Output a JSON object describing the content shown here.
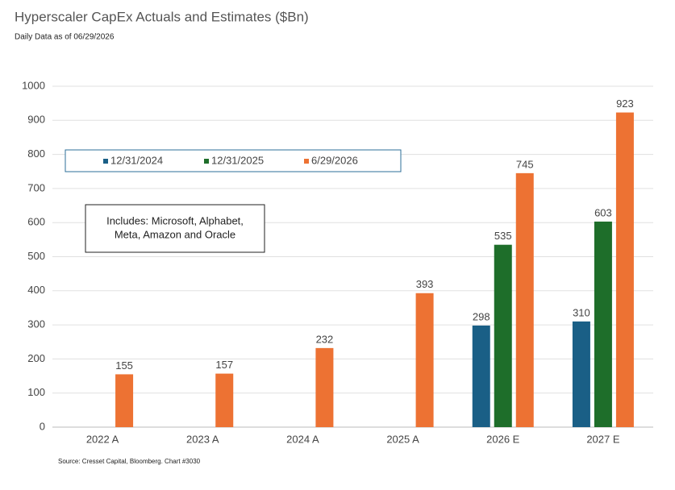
{
  "chart_data": {
    "type": "bar",
    "title": "Hyperscaler CapEx Actuals and Estimates ($Bn)",
    "subtitle": "Daily Data as of 06/29/2026",
    "source": "Source: Cresset Capital, Bloomberg. Chart #3030",
    "annotation": [
      "Includes: Microsoft, Alphabet,",
      "Meta, Amazon and Oracle"
    ],
    "categories": [
      "2022 A",
      "2023 A",
      "2024 A",
      "2025 A",
      "2026 E",
      "2027 E"
    ],
    "series": [
      {
        "name": "12/31/2024",
        "color": "#1a5f86",
        "values": [
          null,
          null,
          null,
          null,
          298,
          310
        ]
      },
      {
        "name": "12/31/2025",
        "color": "#1e6e2a",
        "values": [
          null,
          null,
          null,
          null,
          535,
          603
        ]
      },
      {
        "name": "6/29/2026",
        "color": "#ed7233",
        "values": [
          155,
          157,
          232,
          393,
          745,
          923
        ]
      }
    ],
    "ylim": [
      0,
      1000
    ],
    "yticks": [
      0,
      100,
      200,
      300,
      400,
      500,
      600,
      700,
      800,
      900,
      1000
    ],
    "grid": true,
    "data_labels": true
  }
}
